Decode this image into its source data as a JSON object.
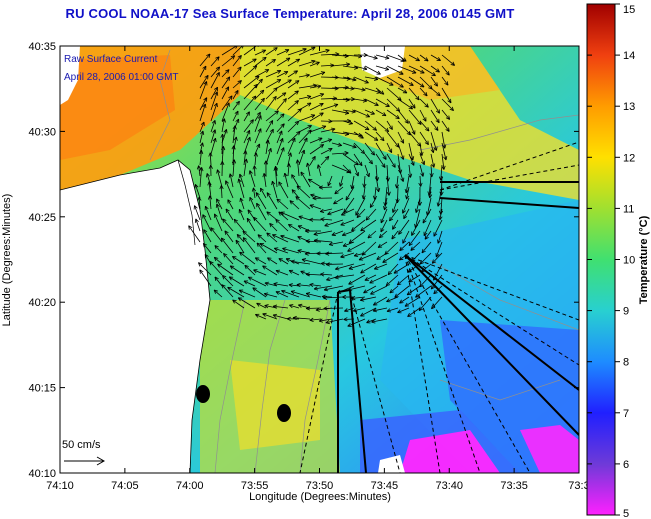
{
  "title": "RU COOL  NOAA-17  Sea Surface Temperature:  April 28, 2006 0145 GMT",
  "legend": {
    "line1": "Raw Surface Current",
    "line2": "April 28, 2006 01:00 GMT"
  },
  "scale_label": "50 cm/s",
  "x_axis": {
    "label": "Longitude (Degrees:Minutes)",
    "ticks": [
      "74:10",
      "74:05",
      "74:00",
      "73:55",
      "73:50",
      "73:45",
      "73:40",
      "73:35",
      "73:3"
    ]
  },
  "y_axis": {
    "label": "Latitude (Degrees:Minutes)",
    "ticks": [
      "40:10",
      "40:15",
      "40:20",
      "40:25",
      "40:30",
      "40:35"
    ]
  },
  "colorbar": {
    "label": "Temperature (°C)",
    "ticks": [
      "5",
      "6",
      "7",
      "8",
      "9",
      "10",
      "11",
      "12",
      "13",
      "14",
      "15"
    ],
    "min": 5,
    "max": 15,
    "colors": [
      "#ff20ff",
      "#6e3ad8",
      "#2020ff",
      "#1e8cff",
      "#28d0d0",
      "#40e070",
      "#a0e030",
      "#ffe000",
      "#ff9c00",
      "#f04010",
      "#a00000"
    ]
  }
}
